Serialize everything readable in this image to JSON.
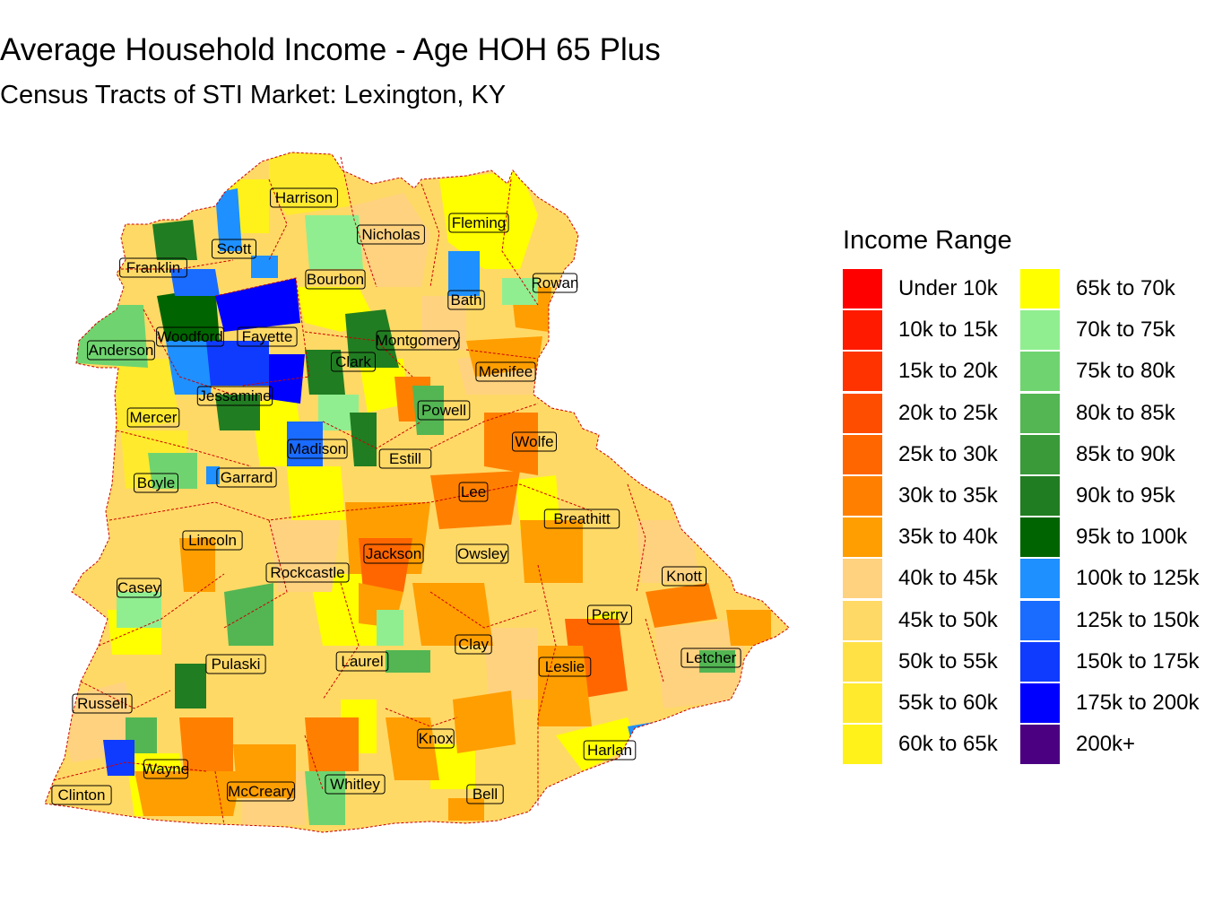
{
  "title": "Average Household Income - Age HOH 65 Plus",
  "subtitle": "Census Tracts of STI Market: Lexington, KY",
  "legend": {
    "title": "Income Range",
    "items": [
      {
        "label": "Under 10k",
        "color": "#FF0000"
      },
      {
        "label": "10k to 15k",
        "color": "#FF1A00"
      },
      {
        "label": "15k to 20k",
        "color": "#FF3300"
      },
      {
        "label": "20k to 25k",
        "color": "#FF4D00"
      },
      {
        "label": "25k to 30k",
        "color": "#FF6600"
      },
      {
        "label": "30k to 35k",
        "color": "#FF8000"
      },
      {
        "label": "35k to 40k",
        "color": "#FF9E00"
      },
      {
        "label": "40k to 45k",
        "color": "#FFD27F"
      },
      {
        "label": "45k to 50k",
        "color": "#FFD966"
      },
      {
        "label": "50k to 55k",
        "color": "#FFE145"
      },
      {
        "label": "55k to 60k",
        "color": "#FFEA2E"
      },
      {
        "label": "60k to 65k",
        "color": "#FFF21A"
      },
      {
        "label": "65k to 70k",
        "color": "#FFFF00"
      },
      {
        "label": "70k to 75k",
        "color": "#90EE90"
      },
      {
        "label": "75k to 80k",
        "color": "#6FD46F"
      },
      {
        "label": "80k to 85k",
        "color": "#53B653"
      },
      {
        "label": "85k to 90k",
        "color": "#3A9A3A"
      },
      {
        "label": "90k to 95k",
        "color": "#217D21"
      },
      {
        "label": "95k to 100k",
        "color": "#006400"
      },
      {
        "label": "100k to 125k",
        "color": "#1E90FF"
      },
      {
        "label": "125k to 150k",
        "color": "#1A6BFF"
      },
      {
        "label": "150k to 175k",
        "color": "#0F3BFF"
      },
      {
        "label": "175k to 200k",
        "color": "#0000FF"
      },
      {
        "label": "200k+",
        "color": "#4B0082"
      }
    ]
  },
  "counties": [
    "Harrison",
    "Nicholas",
    "Fleming",
    "Scott",
    "Franklin",
    "Bourbon",
    "Bath",
    "Rowan",
    "Woodford",
    "Fayette",
    "Montgomery",
    "Anderson",
    "Clark",
    "Menifee",
    "Jessamine",
    "Mercer",
    "Powell",
    "Madison",
    "Wolfe",
    "Estill",
    "Boyle",
    "Garrard",
    "Lee",
    "Breathitt",
    "Lincoln",
    "Jackson",
    "Owsley",
    "Rockcastle",
    "Knott",
    "Casey",
    "Perry",
    "Clay",
    "Pulaski",
    "Laurel",
    "Letcher",
    "Leslie",
    "Russell",
    "Knox",
    "Harlan",
    "Wayne",
    "Whitley",
    "Clinton",
    "McCreary",
    "Bell"
  ]
}
